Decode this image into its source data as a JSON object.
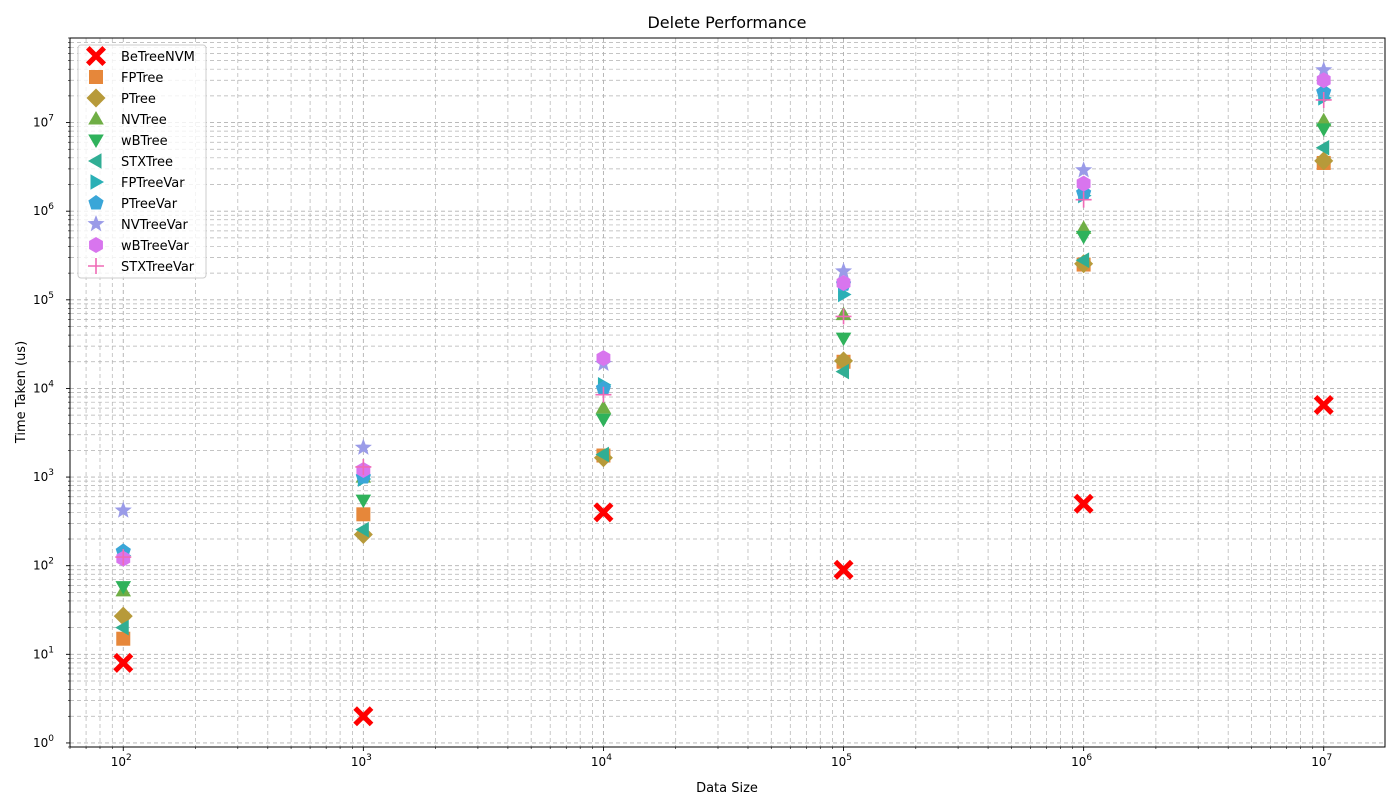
{
  "chart_data": {
    "type": "scatter",
    "title": "Delete Performance",
    "xlabel": "Data Size",
    "ylabel": "Time Taken (us)",
    "x_scale": "log",
    "y_scale": "log",
    "xlim": [
      60,
      18000000
    ],
    "ylim": [
      0.9,
      90000000
    ],
    "x": [
      100,
      1000,
      10000,
      100000,
      1000000,
      10000000
    ],
    "x_tick_labels": [
      {
        "value": 100,
        "base": "10",
        "exp": "2"
      },
      {
        "value": 1000,
        "base": "10",
        "exp": "3"
      },
      {
        "value": 10000,
        "base": "10",
        "exp": "4"
      },
      {
        "value": 100000,
        "base": "10",
        "exp": "5"
      },
      {
        "value": 1000000,
        "base": "10",
        "exp": "6"
      },
      {
        "value": 10000000,
        "base": "10",
        "exp": "7"
      }
    ],
    "y_tick_labels": [
      {
        "value": 1,
        "base": "10",
        "exp": "0"
      },
      {
        "value": 10,
        "base": "10",
        "exp": "1"
      },
      {
        "value": 100,
        "base": "10",
        "exp": "2"
      },
      {
        "value": 1000,
        "base": "10",
        "exp": "3"
      },
      {
        "value": 10000,
        "base": "10",
        "exp": "4"
      },
      {
        "value": 100000,
        "base": "10",
        "exp": "5"
      },
      {
        "value": 1000000,
        "base": "10",
        "exp": "6"
      },
      {
        "value": 10000000,
        "base": "10",
        "exp": "7"
      }
    ],
    "grid": "both (major and minor, dashed)",
    "legend_position": "upper-left",
    "series": [
      {
        "name": "BeTreeNVM",
        "marker": "X",
        "color": "#ff0000",
        "values": [
          8,
          2,
          400,
          90,
          500,
          6500
        ]
      },
      {
        "name": "FPTree",
        "marker": "square",
        "color": "#e6873a",
        "values": [
          15,
          380,
          1750,
          20000,
          250000,
          3500000
        ]
      },
      {
        "name": "PTree",
        "marker": "diamond",
        "color": "#b79a3a",
        "values": [
          27,
          225,
          1650,
          20500,
          255000,
          3700000
        ]
      },
      {
        "name": "NVTree",
        "marker": "triangle-up",
        "color": "#6fae45",
        "values": [
          52,
          1000,
          6000,
          68000,
          640000,
          10500000
        ]
      },
      {
        "name": "wBTree",
        "marker": "triangle-down",
        "color": "#2fb25b",
        "values": [
          58,
          550,
          4500,
          37000,
          520000,
          8500000
        ]
      },
      {
        "name": "STXTree",
        "marker": "triangle-left",
        "color": "#30ae94",
        "values": [
          20,
          255,
          1800,
          15500,
          280000,
          5200000
        ]
      },
      {
        "name": "FPTreeVar",
        "marker": "triangle-right",
        "color": "#2ab0b6",
        "values": [
          130,
          950,
          11000,
          115000,
          1500000,
          19000000
        ]
      },
      {
        "name": "PTreeVar",
        "marker": "pentagon",
        "color": "#3aa6d8",
        "values": [
          145,
          1000,
          10000,
          150000,
          1600000,
          22000000
        ]
      },
      {
        "name": "NVTreeVar",
        "marker": "star",
        "color": "#9a9be8",
        "values": [
          420,
          2150,
          19000,
          210000,
          2900000,
          39000000
        ]
      },
      {
        "name": "wBTreeVar",
        "marker": "hexagon",
        "color": "#d875ee",
        "values": [
          120,
          1200,
          22000,
          155000,
          2050000,
          30000000
        ]
      },
      {
        "name": "STXTreeVar",
        "marker": "plus",
        "color": "#ef6ab6",
        "values": [
          125,
          1300,
          8500,
          65000,
          1350000,
          18000000
        ]
      }
    ]
  }
}
